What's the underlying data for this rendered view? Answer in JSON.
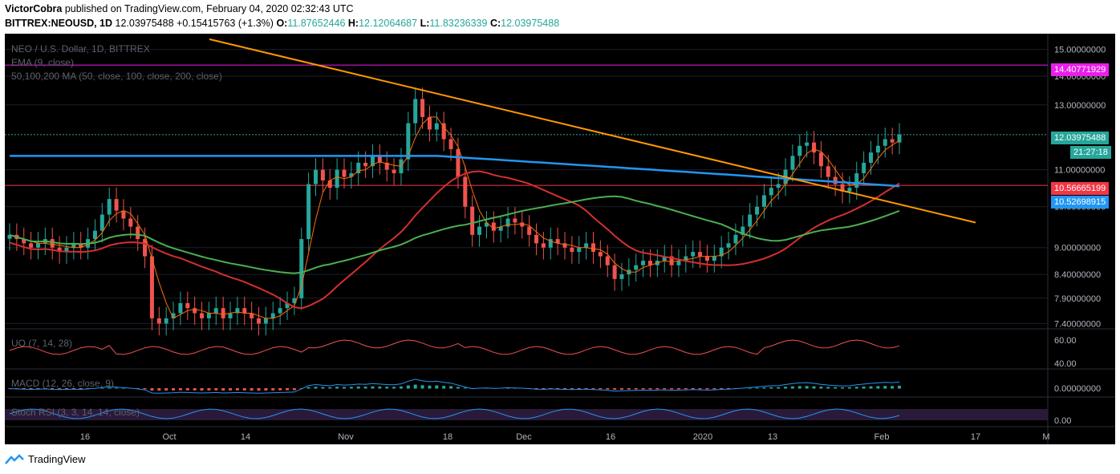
{
  "header": {
    "author": "VictorCobra",
    "published": "published on TradingView.com, February 04, 2020 02:32:43 UTC",
    "symbol": "BITTREX:NEOUSD, 1D",
    "last": "12.03975488",
    "change": "+0.15415763 (+1.3%)",
    "o_label": "O:",
    "o_value": "11.87652446",
    "h_label": "H:",
    "h_value": "12.12064687",
    "l_label": "L:",
    "l_value": "11.83236339",
    "c_label": "C:",
    "c_value": "12.03975488"
  },
  "legend": {
    "title": "NEO / U.S. Dollar, 1D, BITTREX",
    "ema": "EMA (9, close)",
    "ma": "50,100,200 MA (50, close, 100, close, 200, close)",
    "uo": "UO (7, 14, 28)",
    "macd": "MACD (12, 26, close, 9)",
    "stoch": "Stoch RSI (3, 3, 14, 14, close)"
  },
  "axis": {
    "price_ticks": [
      "15.00000000",
      "14.00000000",
      "13.00000000",
      "11.00000000",
      "10.00000000",
      "9.00000000",
      "8.40000000",
      "7.90000000",
      "7.40000000"
    ],
    "uo_ticks": [
      "60.00",
      "40.00"
    ],
    "macd_ticks": [
      "0.00000000"
    ],
    "stoch_ticks": [
      "0.00"
    ],
    "x_ticks": [
      "16",
      "Oct",
      "14",
      "Nov",
      "18",
      "Dec",
      "16",
      "2020",
      "13",
      "Feb",
      "17",
      "M"
    ]
  },
  "tags": {
    "resistance": "14.40771929",
    "last_price": "12.03975488",
    "countdown": "21:27:18",
    "red_level": "10.56665199",
    "blue_ma": "10.52698915"
  },
  "colors": {
    "up": "#26a69a",
    "down": "#ef5350",
    "ema": "#ff6d00",
    "ma50": "#d32f2f",
    "ma100": "#4caf50",
    "ma200": "#2196f3",
    "trend": "#ff9800",
    "resistance": "#e91ee9"
  },
  "chart_data": {
    "type": "candlestick",
    "symbol": "NEOUSD",
    "timeframe": "1D",
    "ylim": [
      7.3,
      15.3
    ],
    "y_scale": "log",
    "close": [
      9.3,
      9.2,
      9.1,
      9.0,
      9.1,
      9.2,
      9.0,
      8.9,
      9.0,
      9.1,
      9.0,
      9.2,
      9.4,
      9.8,
      10.2,
      9.9,
      9.7,
      9.5,
      9.2,
      8.8,
      7.5,
      7.4,
      7.5,
      7.6,
      7.8,
      7.7,
      7.6,
      7.5,
      7.6,
      7.7,
      7.5,
      7.6,
      7.7,
      7.6,
      7.5,
      7.4,
      7.5,
      7.6,
      7.7,
      7.8,
      7.9,
      9.2,
      10.6,
      11.0,
      10.7,
      10.5,
      11.0,
      10.8,
      10.9,
      11.2,
      11.1,
      11.4,
      11.2,
      11.0,
      10.9,
      11.3,
      12.4,
      13.2,
      12.6,
      12.2,
      12.4,
      11.9,
      11.6,
      10.8,
      10.0,
      9.3,
      9.5,
      9.6,
      9.4,
      9.5,
      9.7,
      9.6,
      9.5,
      9.3,
      9.1,
      9.0,
      9.2,
      9.1,
      9.0,
      8.9,
      9.0,
      9.1,
      8.9,
      8.8,
      8.6,
      8.3,
      8.4,
      8.5,
      8.6,
      8.7,
      8.6,
      8.7,
      8.8,
      8.6,
      8.7,
      8.8,
      8.9,
      8.8,
      8.7,
      8.8,
      9.0,
      9.1,
      9.3,
      9.5,
      9.8,
      10.0,
      10.3,
      10.5,
      10.6,
      11.0,
      11.4,
      11.7,
      11.8,
      11.5,
      11.1,
      10.8,
      10.6,
      10.4,
      10.5,
      10.9,
      11.2,
      11.5,
      11.7,
      11.9,
      11.8,
      12.04
    ],
    "ema9_end": 11.6,
    "ma50_end": 10.57,
    "ma100_end": 10.3,
    "ma200_end": 10.53,
    "resistance": 14.4077,
    "trendline": {
      "start": 15.4,
      "end": 9.6
    }
  }
}
